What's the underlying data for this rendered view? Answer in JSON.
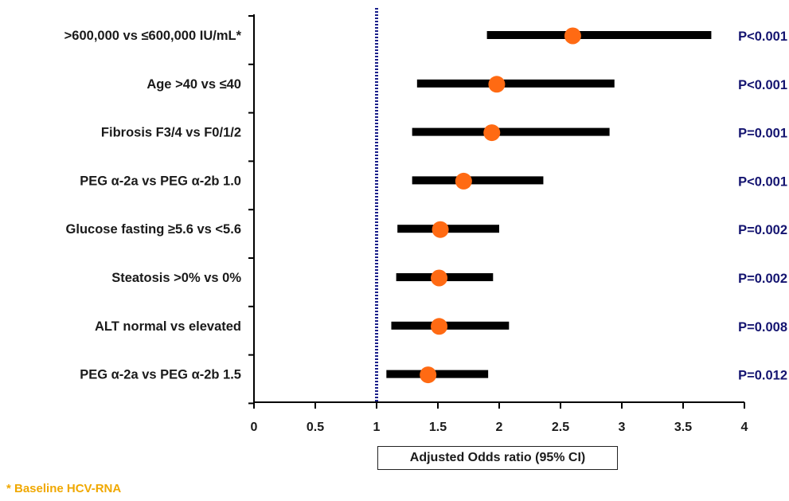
{
  "chart_data": {
    "type": "forest",
    "xlabel": "Adjusted Odds ratio (95% CI)",
    "xlim": [
      0,
      4
    ],
    "xticks": [
      "0",
      "0.5",
      "1",
      "1.5",
      "2",
      "2.5",
      "3",
      "3.5",
      "4"
    ],
    "reference_line": 1,
    "rows": [
      {
        "label": ">600,000 vs ≤600,000 IU/mL*",
        "or": 2.6,
        "ci_low": 1.9,
        "ci_high": 3.73,
        "p": "P<0.001"
      },
      {
        "label": "Age >40 vs ≤40",
        "or": 1.98,
        "ci_low": 1.33,
        "ci_high": 2.94,
        "p": "P<0.001"
      },
      {
        "label": "Fibrosis F3/4 vs F0/1/2",
        "or": 1.94,
        "ci_low": 1.29,
        "ci_high": 2.9,
        "p": "P=0.001"
      },
      {
        "label": "PEG α-2a vs PEG α-2b 1.0",
        "or": 1.71,
        "ci_low": 1.29,
        "ci_high": 2.36,
        "p": "P<0.001"
      },
      {
        "label": "Glucose fasting ≥5.6 vs <5.6",
        "or": 1.52,
        "ci_low": 1.17,
        "ci_high": 2.0,
        "p": "P=0.002"
      },
      {
        "label": "Steatosis >0% vs 0%",
        "or": 1.51,
        "ci_low": 1.16,
        "ci_high": 1.95,
        "p": "P=0.002"
      },
      {
        "label": "ALT normal vs elevated",
        "or": 1.51,
        "ci_low": 1.12,
        "ci_high": 2.08,
        "p": "P=0.008"
      },
      {
        "label": "PEG α-2a vs PEG α-2b 1.5",
        "or": 1.42,
        "ci_low": 1.08,
        "ci_high": 1.91,
        "p": "P=0.012"
      }
    ],
    "colors": {
      "point": "#ff6a13",
      "bar": "#000000",
      "pvalue": "#141470",
      "refline": "#1a1f8a"
    }
  },
  "footnote": "* Baseline HCV-RNA"
}
